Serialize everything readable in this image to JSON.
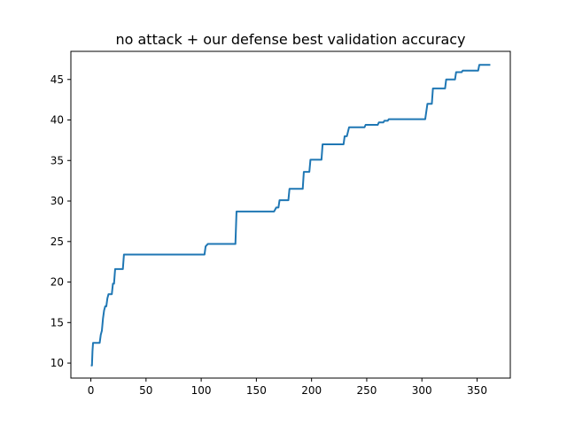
{
  "chart_data": {
    "type": "line",
    "title": "no attack + our defense best validation accuracy",
    "xlabel": "",
    "ylabel": "",
    "xlim": [
      -18.1,
      380.1
    ],
    "ylim": [
      8.15,
      48.47
    ],
    "xticks": [
      0,
      50,
      100,
      150,
      200,
      250,
      300,
      350
    ],
    "yticks": [
      10,
      15,
      20,
      25,
      30,
      35,
      40,
      45
    ],
    "grid": false,
    "line_color": "#1f77b4",
    "series": [
      {
        "points": [
          [
            0,
            9.7
          ],
          [
            1,
            9.7
          ],
          [
            1.5,
            11.5
          ],
          [
            2,
            12.5
          ],
          [
            8,
            12.5
          ],
          [
            9,
            13.5
          ],
          [
            10,
            14.0
          ],
          [
            11,
            15.5
          ],
          [
            12,
            16.5
          ],
          [
            13,
            17.0
          ],
          [
            14,
            17.0
          ],
          [
            15,
            18.0
          ],
          [
            16,
            18.5
          ],
          [
            19,
            18.5
          ],
          [
            20,
            19.8
          ],
          [
            21,
            19.8
          ],
          [
            22,
            21.6
          ],
          [
            29,
            21.6
          ],
          [
            30,
            23.4
          ],
          [
            103,
            23.4
          ],
          [
            104,
            24.4
          ],
          [
            106,
            24.7
          ],
          [
            131,
            24.7
          ],
          [
            132,
            28.7
          ],
          [
            166,
            28.7
          ],
          [
            168,
            29.2
          ],
          [
            170,
            29.2
          ],
          [
            171,
            30.1
          ],
          [
            179,
            30.1
          ],
          [
            180,
            31.5
          ],
          [
            192,
            31.5
          ],
          [
            193,
            33.6
          ],
          [
            198,
            33.6
          ],
          [
            199,
            35.1
          ],
          [
            209,
            35.1
          ],
          [
            210,
            37.0
          ],
          [
            229,
            37.0
          ],
          [
            230,
            38.0
          ],
          [
            232,
            38.0
          ],
          [
            234,
            39.1
          ],
          [
            248,
            39.1
          ],
          [
            249,
            39.4
          ],
          [
            260,
            39.4
          ],
          [
            261,
            39.7
          ],
          [
            265,
            39.7
          ],
          [
            266,
            39.9
          ],
          [
            269,
            39.9
          ],
          [
            270,
            40.1
          ],
          [
            303,
            40.1
          ],
          [
            305,
            42.0
          ],
          [
            309,
            42.0
          ],
          [
            310,
            43.9
          ],
          [
            321,
            43.9
          ],
          [
            322,
            45.0
          ],
          [
            330,
            45.0
          ],
          [
            331,
            45.9
          ],
          [
            336,
            45.9
          ],
          [
            337,
            46.1
          ],
          [
            351,
            46.1
          ],
          [
            352,
            46.8
          ],
          [
            362,
            46.8
          ]
        ]
      }
    ]
  }
}
